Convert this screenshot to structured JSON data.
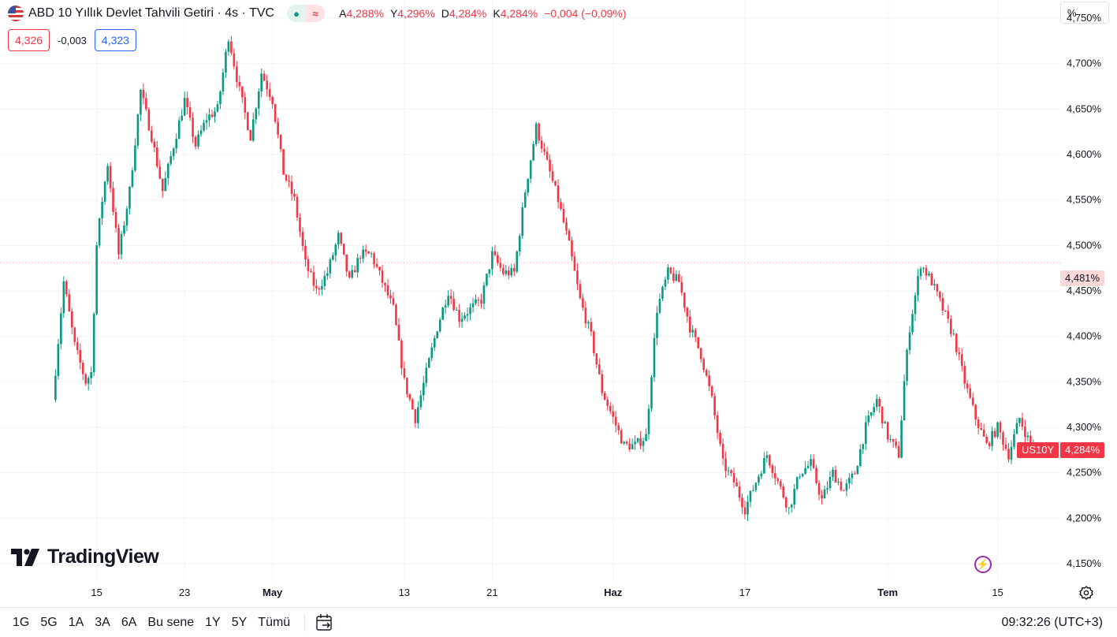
{
  "header": {
    "title": "ABD 10 Yıllık Devlet Tahvili Getiri · 4s · TVC",
    "status_glyph": "●",
    "delay_glyph": "≈",
    "ohlc": [
      {
        "key": "A",
        "value": "4,288%"
      },
      {
        "key": "Y",
        "value": "4,296%"
      },
      {
        "key": "D",
        "value": "4,284%"
      },
      {
        "key": "K",
        "value": "4,284%"
      },
      {
        "key": "",
        "value": "−0,004 (−0,09%)"
      }
    ]
  },
  "trade": {
    "sell": "4,326",
    "spread": "-0,003",
    "buy": "4,323"
  },
  "price_axis": {
    "unit": "%",
    "prev_close_label": "4,481%",
    "current_label": "4,284%",
    "symbol_label": "US10Y"
  },
  "logo": {
    "text": "TradingView"
  },
  "toolbar": {
    "ranges": [
      "1G",
      "5G",
      "1A",
      "3A",
      "6A",
      "Bu sene",
      "1Y",
      "5Y",
      "Tümü"
    ],
    "clock": "09:32:26 (UTC+3)"
  },
  "icons": {
    "flag": "us-flag-icon",
    "status": "market-open-icon",
    "delay": "delayed-data-icon",
    "lightning": "lightning-icon",
    "settings": "gear-icon",
    "goto": "goto-date-icon"
  },
  "colors": {
    "up": "#089981",
    "down": "#f23645",
    "prev_close_line": "#f7a8b0",
    "accent": "#2962ff"
  },
  "chart_data": {
    "type": "candlestick",
    "title": "ABD 10 Yıllık Devlet Tahvili Getiri · 4s · TVC",
    "ylim": [
      4.13,
      4.77
    ],
    "y_ticks": [
      4.15,
      4.2,
      4.25,
      4.3,
      4.35,
      4.4,
      4.45,
      4.5,
      4.55,
      4.6,
      4.65,
      4.7,
      4.75
    ],
    "y_tick_labels": [
      "4,150%",
      "4,200%",
      "4,250%",
      "4,300%",
      "4,350%",
      "4,400%",
      "4,450%",
      "4,500%",
      "4,550%",
      "4,600%",
      "4,650%",
      "4,700%",
      "4,750%"
    ],
    "x_ticks": [
      {
        "label": "15",
        "day": 4,
        "bold": false
      },
      {
        "label": "23",
        "day": 12,
        "bold": false
      },
      {
        "label": "May",
        "day": 20,
        "bold": true
      },
      {
        "label": "13",
        "day": 32,
        "bold": false
      },
      {
        "label": "21",
        "day": 40,
        "bold": false
      },
      {
        "label": "Haz",
        "day": 51,
        "bold": true
      },
      {
        "label": "17",
        "day": 63,
        "bold": false
      },
      {
        "label": "Tem",
        "day": 76,
        "bold": true
      },
      {
        "label": "15",
        "day": 86,
        "bold": false
      }
    ],
    "x_range": [
      -4.8,
      91.7
    ],
    "prev_close": 4.481,
    "last": 4.284,
    "path": [
      [
        0,
        4.33
      ],
      [
        1,
        4.46
      ],
      [
        2,
        4.39
      ],
      [
        3,
        4.35
      ],
      [
        3.5,
        4.36
      ],
      [
        4,
        4.5
      ],
      [
        4.5,
        4.55
      ],
      [
        5,
        4.59
      ],
      [
        6,
        4.49
      ],
      [
        7,
        4.56
      ],
      [
        8,
        4.67
      ],
      [
        9,
        4.62
      ],
      [
        10,
        4.56
      ],
      [
        11,
        4.61
      ],
      [
        12,
        4.66
      ],
      [
        13,
        4.61
      ],
      [
        14,
        4.64
      ],
      [
        15,
        4.65
      ],
      [
        16,
        4.73
      ],
      [
        17,
        4.67
      ],
      [
        18,
        4.62
      ],
      [
        19,
        4.69
      ],
      [
        20,
        4.66
      ],
      [
        21,
        4.58
      ],
      [
        22,
        4.55
      ],
      [
        23,
        4.48
      ],
      [
        24,
        4.45
      ],
      [
        25,
        4.47
      ],
      [
        26,
        4.51
      ],
      [
        27,
        4.46
      ],
      [
        28,
        4.49
      ],
      [
        29,
        4.49
      ],
      [
        30,
        4.46
      ],
      [
        31,
        4.43
      ],
      [
        32,
        4.35
      ],
      [
        33,
        4.31
      ],
      [
        34,
        4.36
      ],
      [
        35,
        4.41
      ],
      [
        36,
        4.45
      ],
      [
        37,
        4.42
      ],
      [
        38,
        4.43
      ],
      [
        39,
        4.44
      ],
      [
        40,
        4.49
      ],
      [
        41,
        4.47
      ],
      [
        42,
        4.47
      ],
      [
        43,
        4.56
      ],
      [
        44,
        4.63
      ],
      [
        45,
        4.59
      ],
      [
        46,
        4.55
      ],
      [
        47,
        4.5
      ],
      [
        48,
        4.44
      ],
      [
        49,
        4.4
      ],
      [
        50,
        4.34
      ],
      [
        51,
        4.31
      ],
      [
        52,
        4.28
      ],
      [
        53,
        4.28
      ],
      [
        54,
        4.29
      ],
      [
        55,
        4.43
      ],
      [
        56,
        4.47
      ],
      [
        57,
        4.46
      ],
      [
        58,
        4.41
      ],
      [
        59,
        4.38
      ],
      [
        60,
        4.33
      ],
      [
        61,
        4.26
      ],
      [
        62,
        4.24
      ],
      [
        63,
        4.21
      ],
      [
        64,
        4.24
      ],
      [
        65,
        4.27
      ],
      [
        66,
        4.24
      ],
      [
        67,
        4.21
      ],
      [
        68,
        4.25
      ],
      [
        69,
        4.26
      ],
      [
        70,
        4.22
      ],
      [
        71,
        4.25
      ],
      [
        72,
        4.23
      ],
      [
        73,
        4.25
      ],
      [
        74,
        4.3
      ],
      [
        75,
        4.33
      ],
      [
        76,
        4.29
      ],
      [
        77,
        4.27
      ],
      [
        77.5,
        4.35
      ],
      [
        78,
        4.41
      ],
      [
        79,
        4.48
      ],
      [
        80,
        4.46
      ],
      [
        81,
        4.43
      ],
      [
        82,
        4.4
      ],
      [
        83,
        4.35
      ],
      [
        84,
        4.31
      ],
      [
        85,
        4.28
      ],
      [
        86,
        4.3
      ],
      [
        87,
        4.27
      ],
      [
        88,
        4.31
      ],
      [
        89,
        4.28
      ],
      [
        89.3,
        4.284
      ]
    ]
  }
}
